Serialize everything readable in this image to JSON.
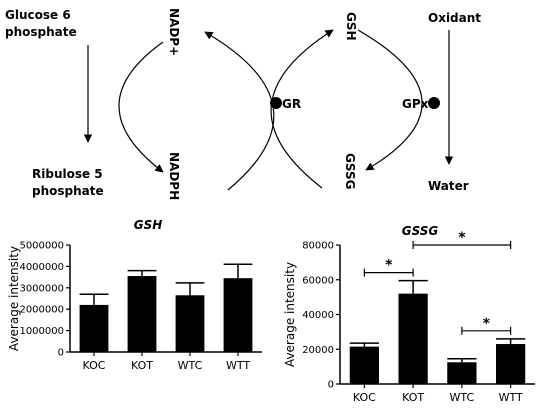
{
  "diagram": {
    "left_top": [
      "Glucose 6",
      "phosphate"
    ],
    "left_bottom": [
      "Ribulose 5",
      "phosphate"
    ],
    "nadp_plus": "NADP+",
    "nadph": "NADPH",
    "gr": "GR",
    "gsh": "GSH",
    "gssg": "GSSG",
    "gpx": "GPx",
    "oxidant": "Oxidant",
    "water": "Water"
  },
  "chart_data": [
    {
      "type": "bar",
      "title": "GSH",
      "ylabel": "Average intensity",
      "categories": [
        "KOC",
        "KOT",
        "WTC",
        "WTT"
      ],
      "values": [
        2200000,
        3550000,
        2650000,
        3450000
      ],
      "errors": [
        500000,
        250000,
        580000,
        650000
      ],
      "ylim": [
        0,
        5000000
      ],
      "yticks": [
        "0",
        "1000000",
        "2000000",
        "3000000",
        "4000000",
        "5000000"
      ],
      "significance": []
    },
    {
      "type": "bar",
      "title": "GSSG",
      "ylabel": "Average intensity",
      "categories": [
        "KOC",
        "KOT",
        "WTC",
        "WTT"
      ],
      "values": [
        21500,
        52000,
        12500,
        23000
      ],
      "errors": [
        2000,
        7500,
        2000,
        3000
      ],
      "ylim": [
        0,
        80000
      ],
      "yticks": [
        "0",
        "20000",
        "40000",
        "60000",
        "80000"
      ],
      "significance": [
        {
          "from": "KOC",
          "to": "KOT",
          "label": "*"
        },
        {
          "from": "KOT",
          "to": "WTT",
          "label": "*"
        },
        {
          "from": "WTC",
          "to": "WTT",
          "label": "*"
        }
      ]
    }
  ]
}
